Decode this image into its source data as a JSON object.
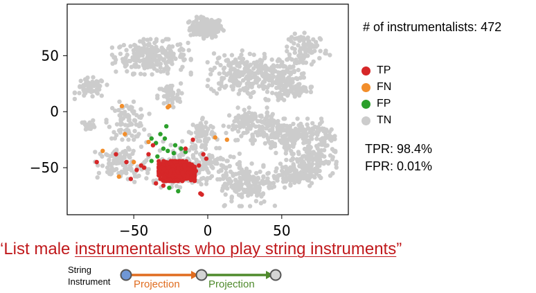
{
  "chart_data": {
    "type": "scatter",
    "title": "",
    "xlabel": "",
    "ylabel": "",
    "xlim": [
      -95,
      95
    ],
    "ylim": [
      -92,
      96
    ],
    "xticks": [
      -50,
      0,
      50
    ],
    "yticks": [
      -50,
      0,
      50
    ],
    "xtick_labels": [
      "−50",
      "0",
      "50"
    ],
    "ytick_labels": [
      "−50",
      "0",
      "50"
    ],
    "grid": false,
    "legend_position": "right",
    "series": [
      {
        "name": "TP",
        "color": "#d62728"
      },
      {
        "name": "FN",
        "color": "#f28e2b"
      },
      {
        "name": "FP",
        "color": "#2ca02c"
      },
      {
        "name": "TN",
        "color": "#cccccc"
      }
    ],
    "tn_clusters": [
      {
        "x": -1,
        "y": 75,
        "rx": 10,
        "ry": 8,
        "n": 140
      },
      {
        "x": -38,
        "y": 49,
        "rx": 22,
        "ry": 13,
        "n": 260
      },
      {
        "x": -79,
        "y": 21,
        "rx": 9,
        "ry": 8,
        "n": 60
      },
      {
        "x": -80,
        "y": -12,
        "rx": 4,
        "ry": 4,
        "n": 15
      },
      {
        "x": -54,
        "y": -8,
        "rx": 12,
        "ry": 14,
        "n": 90
      },
      {
        "x": -26,
        "y": 14,
        "rx": 7,
        "ry": 10,
        "n": 50
      },
      {
        "x": -3,
        "y": -20,
        "rx": 8,
        "ry": 14,
        "n": 70
      },
      {
        "x": 18,
        "y": 34,
        "rx": 15,
        "ry": 17,
        "n": 140
      },
      {
        "x": 46,
        "y": 31,
        "rx": 20,
        "ry": 17,
        "n": 200
      },
      {
        "x": 68,
        "y": 57,
        "rx": 12,
        "ry": 11,
        "n": 80
      },
      {
        "x": 30,
        "y": -11,
        "rx": 16,
        "ry": 12,
        "n": 120
      },
      {
        "x": 57,
        "y": -22,
        "rx": 22,
        "ry": 13,
        "n": 190
      },
      {
        "x": 70,
        "y": -43,
        "rx": 14,
        "ry": 12,
        "n": 110
      },
      {
        "x": 57,
        "y": -57,
        "rx": 16,
        "ry": 9,
        "n": 120
      },
      {
        "x": 26,
        "y": -65,
        "rx": 16,
        "ry": 16,
        "n": 150
      },
      {
        "x": -10,
        "y": -47,
        "rx": 26,
        "ry": 17,
        "n": 190
      },
      {
        "x": -58,
        "y": -47,
        "rx": 15,
        "ry": 13,
        "n": 110
      },
      {
        "x": 79,
        "y": -22,
        "rx": 6,
        "ry": 7,
        "n": 30
      },
      {
        "x": 60,
        "y": 19,
        "rx": 8,
        "ry": 6,
        "n": 40
      }
    ],
    "tp_points": [
      {
        "x": -52,
        "y": -60
      },
      {
        "x": -55,
        "y": -45
      },
      {
        "x": -48,
        "y": -52
      },
      {
        "x": -40,
        "y": -38
      },
      {
        "x": -43,
        "y": -50
      },
      {
        "x": -37,
        "y": -30
      },
      {
        "x": -10,
        "y": -25
      },
      {
        "x": -3,
        "y": -38
      },
      {
        "x": -1,
        "y": -42
      },
      {
        "x": -6,
        "y": -48
      },
      {
        "x": -8,
        "y": -53
      },
      {
        "x": -5,
        "y": -73
      },
      {
        "x": -4,
        "y": -74
      },
      {
        "x": -32,
        "y": -60
      },
      {
        "x": -35,
        "y": -64
      },
      {
        "x": -30,
        "y": -66
      },
      {
        "x": -75,
        "y": -45
      },
      {
        "x": -62,
        "y": -38
      },
      {
        "x": -45,
        "y": -48
      },
      {
        "x": -15,
        "y": -33
      }
    ],
    "tp_cluster": {
      "x": -21,
      "y": -53,
      "rx": 11,
      "ry": 8,
      "n": 520
    },
    "fn_points": [
      {
        "x": -71,
        "y": -35
      },
      {
        "x": -56,
        "y": -20
      },
      {
        "x": -50,
        "y": -45
      },
      {
        "x": -45,
        "y": -48
      },
      {
        "x": -40,
        "y": -27
      },
      {
        "x": -27,
        "y": 4
      },
      {
        "x": -26,
        "y": 5
      },
      {
        "x": 5,
        "y": -23
      },
      {
        "x": 13,
        "y": -25
      },
      {
        "x": -58,
        "y": 5
      },
      {
        "x": -60,
        "y": -58
      }
    ],
    "fp_points": [
      {
        "x": -32,
        "y": -20
      },
      {
        "x": -35,
        "y": -28
      },
      {
        "x": -30,
        "y": -33
      },
      {
        "x": -22,
        "y": -30
      },
      {
        "x": -18,
        "y": -33
      },
      {
        "x": -27,
        "y": -35
      },
      {
        "x": -38,
        "y": -44
      },
      {
        "x": -34,
        "y": -40
      },
      {
        "x": -26,
        "y": -68
      },
      {
        "x": -20,
        "y": -71
      },
      {
        "x": -29,
        "y": -24
      },
      {
        "x": -15,
        "y": -36
      },
      {
        "x": -23,
        "y": -37
      },
      {
        "x": -28,
        "y": -13
      },
      {
        "x": -38,
        "y": -24
      }
    ]
  },
  "stats": {
    "count_label": "# of instrumentalists: 472",
    "tpr_label": "TPR: 98.4%",
    "fpr_label": "FPR: 0.01%"
  },
  "legend": {
    "items": [
      {
        "label": "TP",
        "color": "#d62728"
      },
      {
        "label": "FN",
        "color": "#f28e2b"
      },
      {
        "label": "FP",
        "color": "#2ca02c"
      },
      {
        "label": "TN",
        "color": "#cccccc"
      }
    ]
  },
  "query": {
    "prefix": "‘List male ",
    "underlined": "instrumentalists who play string instruments",
    "suffix": "”"
  },
  "flow": {
    "start_label_line1": "String",
    "start_label_line2": "Instrument",
    "projection1": "Projection",
    "projection2": "Projection",
    "projection1_color": "#e06c1f",
    "projection2_color": "#4f8a2c",
    "start_node_color": "#6f97d6",
    "node_color": "#d4d4d4"
  }
}
